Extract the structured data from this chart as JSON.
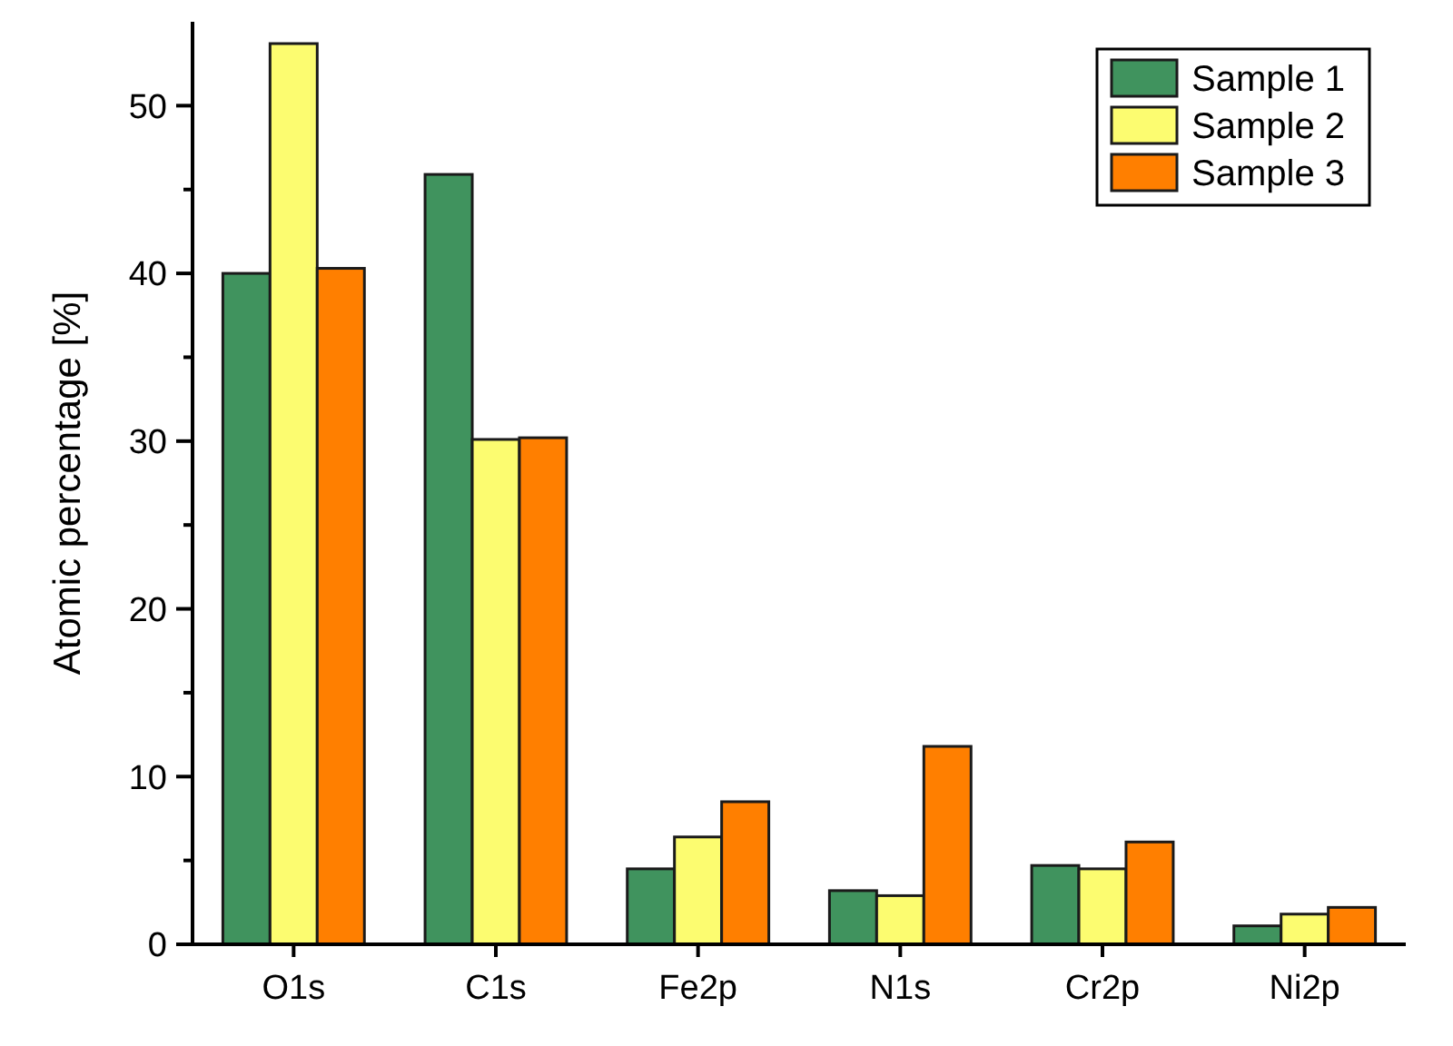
{
  "chart_data": {
    "type": "bar",
    "ylabel": "Atomic percentage [%]",
    "categories": [
      "O1s",
      "C1s",
      "Fe2p",
      "N1s",
      "Cr2p",
      "Ni2p"
    ],
    "series": [
      {
        "name": "Sample 1",
        "color": "#40935e",
        "values": [
          40.0,
          45.9,
          4.5,
          3.2,
          4.7,
          1.1
        ]
      },
      {
        "name": "Sample 2",
        "color": "#fcfc70",
        "values": [
          53.7,
          30.1,
          6.4,
          2.9,
          4.5,
          1.8
        ]
      },
      {
        "name": "Sample 3",
        "color": "#ff7f00",
        "values": [
          40.3,
          30.2,
          8.5,
          11.8,
          6.1,
          2.2
        ]
      }
    ],
    "ylim": [
      0,
      55
    ],
    "yticks": [
      0,
      {
        "value": 5,
        "label": null
      },
      10,
      {
        "value": 15,
        "label": null
      },
      20,
      {
        "value": 25,
        "label": null
      },
      30,
      {
        "value": 35,
        "label": null
      },
      40,
      {
        "value": 45,
        "label": null
      },
      50
    ],
    "grid": false,
    "legend": "top right"
  }
}
